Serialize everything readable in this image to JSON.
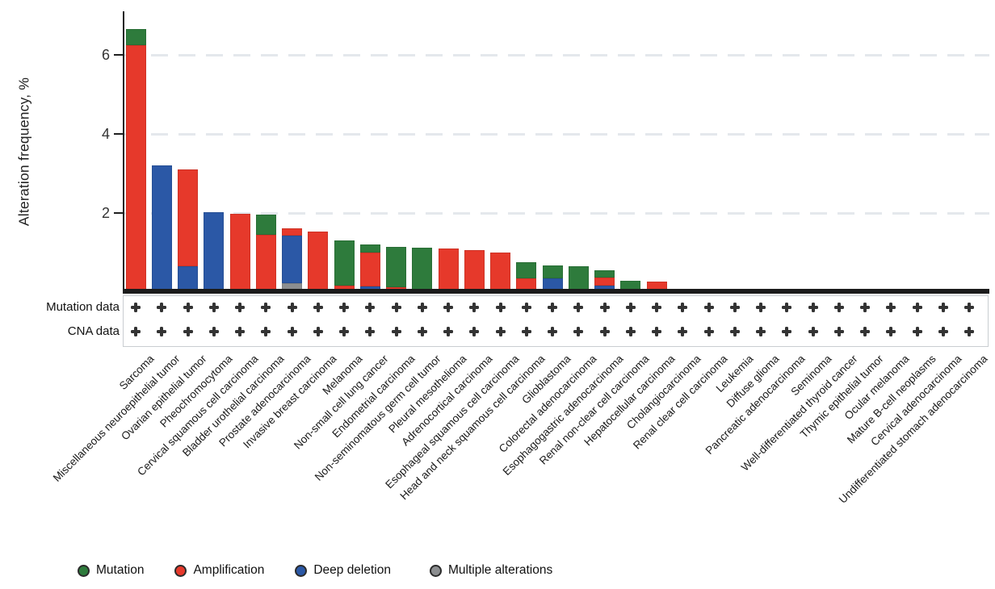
{
  "chart_data": {
    "type": "bar",
    "stacked": true,
    "title": "",
    "xlabel": "",
    "ylabel": "Alteration frequency, %",
    "ylim": [
      0,
      7.1
    ],
    "yticks": [
      2,
      4,
      6
    ],
    "grid": "dashed horizontal lines at y ticks",
    "legend_position": "bottom",
    "categories": [
      "Sarcoma",
      "Miscellaneous neuroepithelial tumor",
      "Ovarian epithelial tumor",
      "Pheochromocytoma",
      "Cervical squamous cell carcinoma",
      "Bladder urothelial carcinoma",
      "Prostate adenocarcinoma",
      "Invasive breast carcinoma",
      "Melanoma",
      "Non-small cell lung cancer",
      "Endometrial carcinoma",
      "Non-seminomatous germ cell tumor",
      "Pleural mesothelioma",
      "Adrenocortical carcinoma",
      "Esophageal squamous cell carcinoma",
      "Head and neck squamous cell carcinoma",
      "Glioblastoma",
      "Colorectal adenocarcinoma",
      "Esophagogastric adenocarcinoma",
      "Renal non-clear cell carcinoma",
      "Hepatocellular carcinoma",
      "Cholangiocarcinoma",
      "Renal clear cell carcinoma",
      "Leukemia",
      "Diffuse glioma",
      "Pancreatic adenocarcinoma",
      "Seminoma",
      "Well-differentiated thyroid cancer",
      "Thymic epithelial tumor",
      "Ocular melanoma",
      "Mature B-cell neoplasms",
      "Cervical adenocarcinoma",
      "Undifferentiated stomach adenocarcinoma"
    ],
    "series": [
      {
        "name": "Mutation",
        "color": "#2e7b3c",
        "values": [
          0.4,
          0,
          0,
          0,
          0,
          0.5,
          0,
          0,
          1.14,
          0.2,
          1.01,
          1.12,
          0,
          0,
          0,
          0.41,
          0.33,
          0.66,
          0.19,
          0.29,
          0,
          0,
          0,
          0,
          0,
          0,
          0,
          0,
          0,
          0,
          0,
          0,
          0
        ]
      },
      {
        "name": "Amplification",
        "color": "#e6392b",
        "values": [
          6.25,
          0,
          2.45,
          0,
          1.97,
          1.45,
          0.2,
          1.47,
          0.17,
          0.85,
          0.13,
          0,
          1.1,
          1.06,
          1.0,
          0.35,
          0,
          0,
          0.2,
          0,
          0.26,
          0,
          0,
          0,
          0,
          0,
          0,
          0,
          0,
          0,
          0,
          0,
          0
        ]
      },
      {
        "name": "Deep deletion",
        "color": "#2b58a6",
        "values": [
          0,
          3.2,
          0.65,
          2.02,
          0,
          0,
          1.2,
          0.07,
          0,
          0.15,
          0,
          0,
          0,
          0,
          0,
          0,
          0.34,
          0,
          0.16,
          0,
          0,
          0,
          0,
          0,
          0,
          0,
          0,
          0,
          0,
          0,
          0,
          0,
          0
        ]
      },
      {
        "name": "Multiple alterations",
        "color": "#8c8e90",
        "values": [
          0,
          0,
          0,
          0,
          0,
          0,
          0.22,
          0,
          0,
          0,
          0,
          0,
          0,
          0,
          0,
          0,
          0,
          0,
          0,
          0,
          0,
          0,
          0,
          0,
          0,
          0,
          0,
          0,
          0,
          0,
          0,
          0,
          0
        ]
      }
    ]
  },
  "data_table": {
    "rows": [
      {
        "label": "Mutation data",
        "symbol": "+",
        "values": [
          "+",
          "+",
          "+",
          "+",
          "+",
          "+",
          "+",
          "+",
          "+",
          "+",
          "+",
          "+",
          "+",
          "+",
          "+",
          "+",
          "+",
          "+",
          "+",
          "+",
          "+",
          "+",
          "+",
          "+",
          "+",
          "+",
          "+",
          "+",
          "+",
          "+",
          "+",
          "+",
          "+"
        ]
      },
      {
        "label": "CNA data",
        "symbol": "+",
        "values": [
          "+",
          "+",
          "+",
          "+",
          "+",
          "+",
          "+",
          "+",
          "+",
          "+",
          "+",
          "+",
          "+",
          "+",
          "+",
          "+",
          "+",
          "+",
          "+",
          "+",
          "+",
          "+",
          "+",
          "+",
          "+",
          "+",
          "+",
          "+",
          "+",
          "+",
          "+",
          "+",
          "+"
        ]
      }
    ]
  }
}
